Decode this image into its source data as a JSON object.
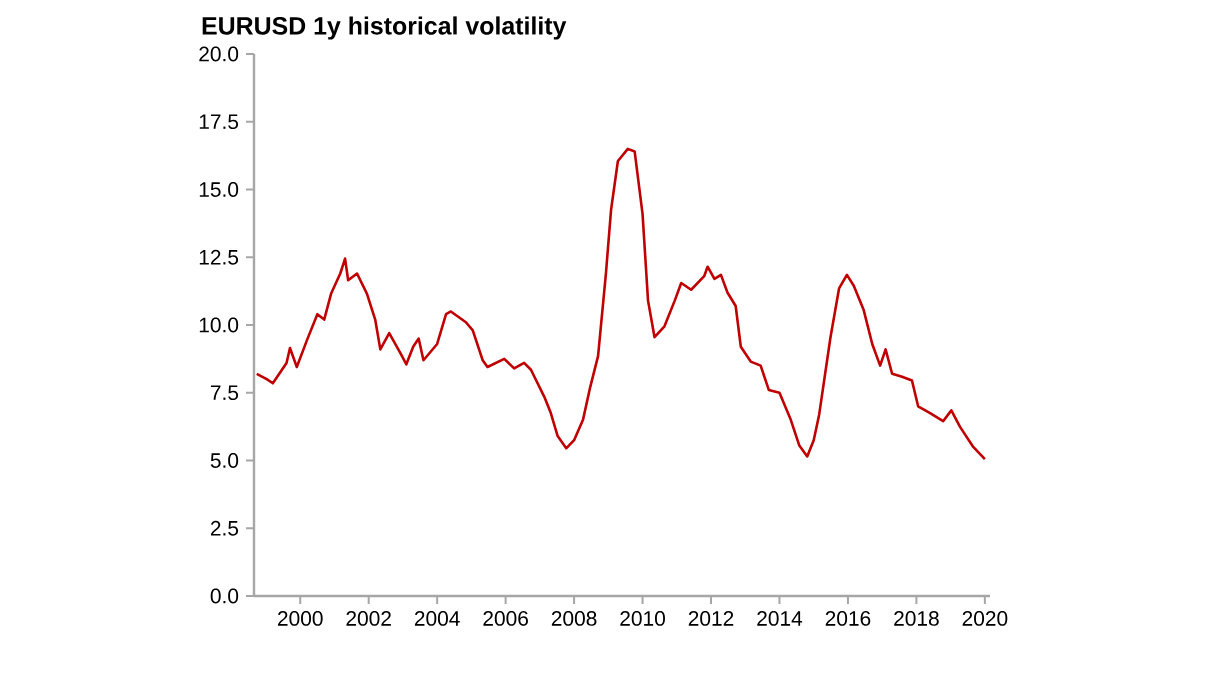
{
  "chart_data": {
    "type": "line",
    "title": "EURUSD 1y historical volatility",
    "x": [
      1998.73,
      1999.02,
      1999.2,
      1999.6,
      1999.7,
      1999.9,
      2000.2,
      2000.5,
      2000.7,
      2000.9,
      2001.17,
      2001.31,
      2001.4,
      2001.66,
      2001.95,
      2002.19,
      2002.34,
      2002.6,
      2002.93,
      2003.1,
      2003.3,
      2003.46,
      2003.6,
      2004.0,
      2004.26,
      2004.4,
      2004.84,
      2005.04,
      2005.33,
      2005.47,
      2005.96,
      2006.25,
      2006.54,
      2006.74,
      2007.13,
      2007.32,
      2007.52,
      2007.77,
      2008.0,
      2008.26,
      2008.46,
      2008.7,
      2008.93,
      2009.08,
      2009.28,
      2009.57,
      2009.77,
      2010.0,
      2010.16,
      2010.35,
      2010.64,
      2010.94,
      2011.13,
      2011.42,
      2011.8,
      2011.9,
      2012.1,
      2012.29,
      2012.48,
      2012.72,
      2012.87,
      2013.16,
      2013.45,
      2013.69,
      2014.0,
      2014.33,
      2014.58,
      2014.81,
      2015.0,
      2015.16,
      2015.49,
      2015.74,
      2015.97,
      2016.17,
      2016.46,
      2016.71,
      2016.94,
      2017.1,
      2017.29,
      2017.56,
      2017.87,
      2018.05,
      2018.4,
      2018.78,
      2019.02,
      2019.27,
      2019.66,
      2020.0
    ],
    "series": [
      {
        "color": "#c00000",
        "values": [
          8.2,
          8.0,
          7.85,
          8.6,
          9.15,
          8.45,
          9.45,
          10.4,
          10.2,
          11.15,
          11.9,
          12.45,
          11.65,
          11.9,
          11.15,
          10.2,
          9.1,
          9.7,
          8.95,
          8.55,
          9.2,
          9.5,
          8.7,
          9.3,
          10.4,
          10.5,
          10.1,
          9.8,
          8.7,
          8.45,
          8.75,
          8.4,
          8.6,
          8.35,
          7.35,
          6.75,
          5.9,
          5.45,
          5.75,
          6.5,
          7.65,
          8.85,
          11.9,
          14.25,
          16.05,
          16.5,
          16.4,
          14.1,
          10.9,
          9.55,
          9.95,
          10.9,
          11.55,
          11.3,
          11.8,
          12.15,
          11.7,
          11.85,
          11.2,
          10.7,
          9.2,
          8.65,
          8.5,
          7.6,
          7.5,
          6.5,
          5.55,
          5.15,
          5.75,
          6.7,
          9.55,
          11.35,
          11.85,
          11.45,
          10.55,
          9.3,
          8.5,
          9.1,
          8.2,
          8.1,
          7.95,
          7.0,
          6.75,
          6.45,
          6.85,
          6.25,
          5.5,
          5.05
        ]
      }
    ],
    "xlim": [
      1998.65,
      2020.15
    ],
    "xticks": [
      2000,
      2002,
      2004,
      2006,
      2008,
      2010,
      2012,
      2014,
      2016,
      2018,
      2020
    ],
    "ylim": [
      0,
      20
    ],
    "yticks": [
      {
        "value": 0,
        "label": "0.0"
      },
      {
        "value": 2.5,
        "label": "2.5"
      },
      {
        "value": 5,
        "label": "5.0"
      },
      {
        "value": 7.5,
        "label": "7.5"
      },
      {
        "value": 10,
        "label": "10.0"
      },
      {
        "value": 12.5,
        "label": "12.5"
      },
      {
        "value": 15,
        "label": "15.0"
      },
      {
        "value": 17.5,
        "label": "17.5"
      },
      {
        "value": 20,
        "label": "20.0"
      }
    ],
    "grid": false,
    "marker": "none",
    "line_style": "solid"
  }
}
